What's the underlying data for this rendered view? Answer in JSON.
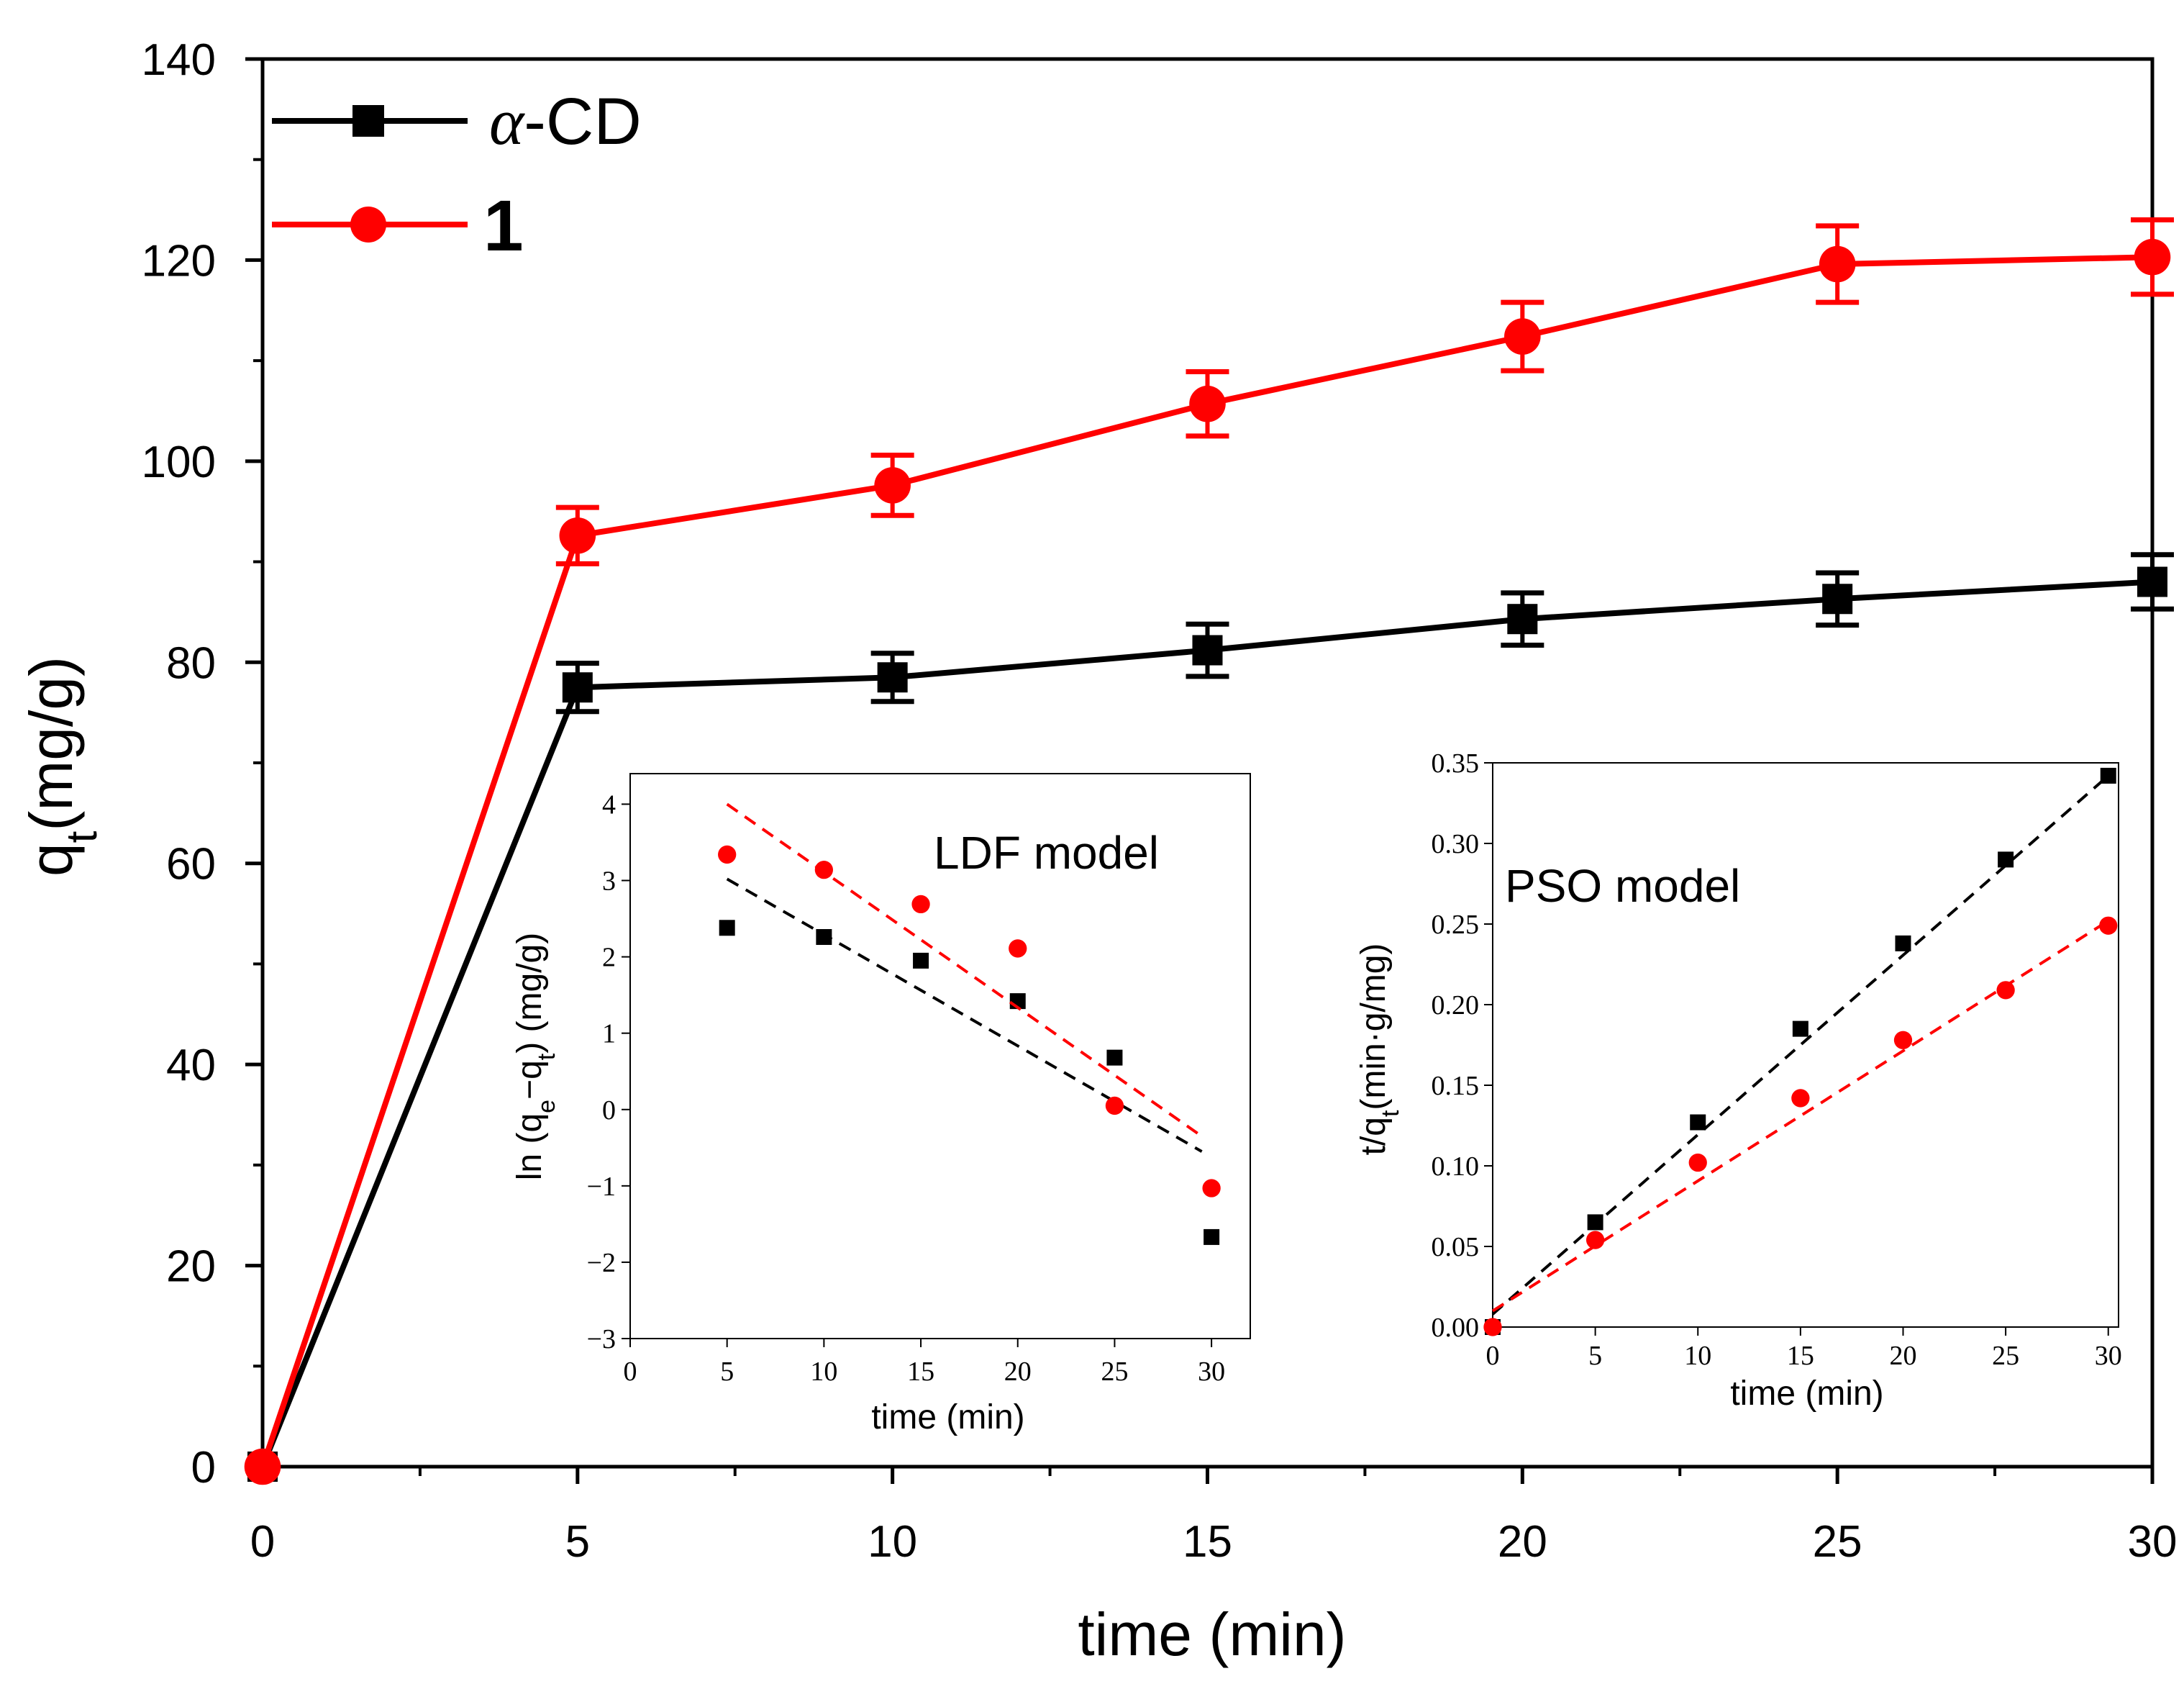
{
  "colors": {
    "series_alpha": "#000000",
    "series_one": "#ff0000",
    "axis": "#000000",
    "background": "#ffffff"
  },
  "legend": {
    "alpha_prefix": "α",
    "alpha_suffix": "-CD",
    "one_label": "1"
  },
  "chart_data": [
    {
      "id": "main",
      "type": "line",
      "title": "",
      "xlabel": "time (min)",
      "ylabel_main": "q",
      "ylabel_sub": "t",
      "ylabel_unit": "(mg/g)",
      "xlim": [
        0,
        30
      ],
      "ylim": [
        0,
        140
      ],
      "xticks": [
        0,
        5,
        10,
        15,
        20,
        25,
        30
      ],
      "yticks": [
        0,
        20,
        40,
        60,
        80,
        100,
        120,
        140
      ],
      "x": [
        0,
        5,
        10,
        15,
        20,
        25,
        30
      ],
      "series": [
        {
          "name": "α-CD",
          "marker": "square",
          "color": "#000000",
          "values": [
            0,
            77.5,
            78.5,
            81.2,
            84.3,
            86.3,
            88.0
          ],
          "errors": [
            0,
            2.4,
            2.4,
            2.6,
            2.6,
            2.6,
            2.7
          ]
        },
        {
          "name": "1",
          "marker": "circle",
          "color": "#ff0000",
          "values": [
            0,
            92.6,
            97.6,
            105.7,
            112.4,
            119.6,
            120.3
          ],
          "errors": [
            0,
            2.8,
            3.0,
            3.2,
            3.4,
            3.8,
            3.7
          ]
        }
      ]
    },
    {
      "id": "ldf",
      "type": "scatter",
      "title": "LDF model",
      "xlabel": "time (min)",
      "ylabel": "ln (qe−qt) (mg/g)",
      "xlim": [
        0,
        32
      ],
      "ylim": [
        -3,
        4.4
      ],
      "xticks": [
        0,
        5,
        10,
        15,
        20,
        25,
        30
      ],
      "yticks": [
        -3,
        -2,
        -1,
        0,
        1,
        2,
        3,
        4
      ],
      "x": [
        5,
        10,
        15,
        20,
        25,
        30
      ],
      "series": [
        {
          "name": "α-CD",
          "marker": "square",
          "color": "#000000",
          "values": [
            2.38,
            2.26,
            1.95,
            1.42,
            0.68,
            -1.67
          ],
          "fit": {
            "x": [
              5,
              29.5
            ],
            "y": [
              3.02,
              -0.55
            ]
          }
        },
        {
          "name": "1",
          "marker": "circle",
          "color": "#ff0000",
          "values": [
            3.34,
            3.14,
            2.69,
            2.11,
            0.05,
            -1.03
          ],
          "fit": {
            "x": [
              5,
              29.5
            ],
            "y": [
              4.0,
              -0.35
            ]
          }
        }
      ]
    },
    {
      "id": "pso",
      "type": "scatter",
      "title": "PSO model",
      "xlabel": "time (min)",
      "ylabel_main": "t/q",
      "ylabel_sub": "t",
      "ylabel_unit": "(min·g/mg)",
      "xlim": [
        0,
        30.5
      ],
      "ylim": [
        0,
        0.35
      ],
      "xticks": [
        0,
        5,
        10,
        15,
        20,
        25,
        30
      ],
      "yticks": [
        "0.00",
        "0.05",
        "0.10",
        "0.15",
        "0.20",
        "0.25",
        "0.30",
        "0.35"
      ],
      "x": [
        0,
        5,
        10,
        15,
        20,
        25,
        30
      ],
      "series": [
        {
          "name": "α-CD",
          "marker": "square",
          "color": "#000000",
          "values": [
            0,
            0.065,
            0.127,
            0.185,
            0.238,
            0.29,
            0.342
          ],
          "fit": {
            "x": [
              0,
              30
            ],
            "y": [
              0.008,
              0.342
            ]
          }
        },
        {
          "name": "1",
          "marker": "circle",
          "color": "#ff0000",
          "values": [
            0,
            0.054,
            0.102,
            0.142,
            0.178,
            0.209,
            0.249
          ],
          "fit": {
            "x": [
              0,
              30
            ],
            "y": [
              0.01,
              0.252
            ]
          }
        }
      ]
    }
  ]
}
